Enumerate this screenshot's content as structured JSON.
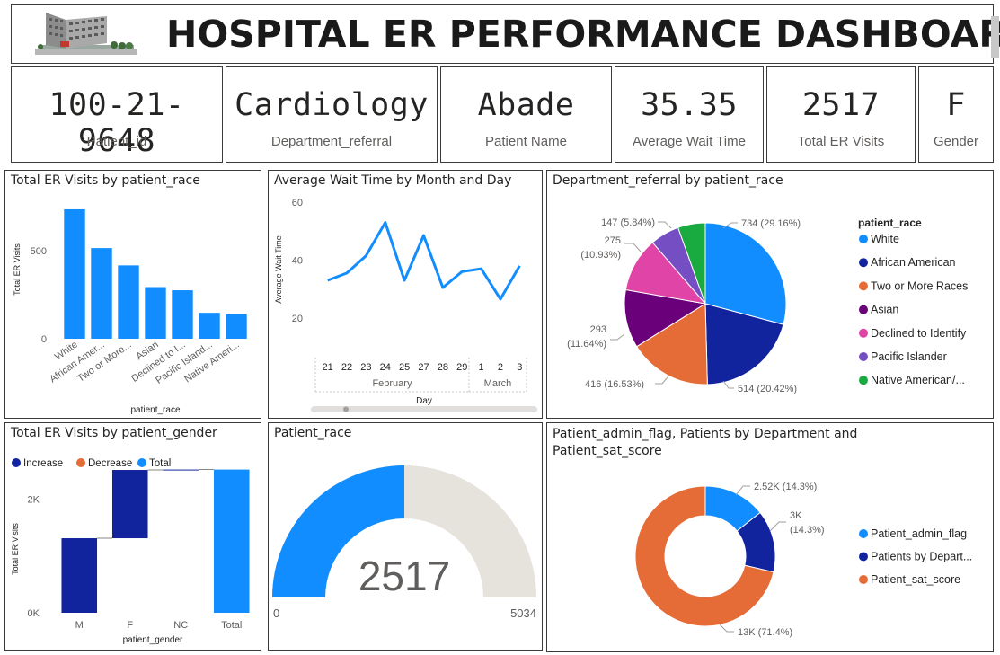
{
  "header": {
    "title": "HOSPITAL ER PERFORMANCE DASHBOARD",
    "logo": "hospital-building-image"
  },
  "cards": [
    {
      "value": "100-21-9648",
      "label": "Patient_id"
    },
    {
      "value": "Cardiology",
      "label": "Department_referral"
    },
    {
      "value": "Abade",
      "label": "Patient Name"
    },
    {
      "value": "35.35",
      "label": "Average Wait Time"
    },
    {
      "value": "2517",
      "label": "Total ER Visits"
    },
    {
      "value": "F",
      "label": "Gender"
    }
  ],
  "colors": {
    "primary": "#118dff",
    "navy": "#12239e",
    "orange": "#e66c37",
    "purple": "#6b007b",
    "pink": "#e044a7",
    "darkpurple": "#744ec2",
    "green": "#1aab40",
    "gaugeTrack": "#e6e2dc"
  },
  "chart_data": [
    {
      "type": "bar",
      "title": "Total ER Visits by patient_race",
      "xlabel": "patient_race",
      "ylabel": "Total ER Visits",
      "categories": [
        "White",
        "African Amer...",
        "Two or More...",
        "Asian",
        "Declined to I...",
        "Pacific Island...",
        "Native Ameri..."
      ],
      "values": [
        734,
        514,
        416,
        293,
        275,
        147,
        138
      ],
      "yticks": [
        "0",
        "500"
      ],
      "ylim": [
        0,
        800
      ]
    },
    {
      "type": "line",
      "title": "Average Wait Time by Month and Day",
      "xlabel": "Day",
      "ylabel": "Average Wait Time",
      "x": [
        "21",
        "22",
        "23",
        "24",
        "25",
        "27",
        "28",
        "29",
        "1",
        "2",
        "3"
      ],
      "groups": [
        {
          "label": "February",
          "count": 8
        },
        {
          "label": "March",
          "count": 3
        }
      ],
      "values": [
        33,
        35.5,
        41.5,
        53,
        33,
        48.5,
        30.5,
        36,
        37,
        26.5,
        38
      ],
      "yticks": [
        "20",
        "40",
        "60"
      ],
      "ylim": [
        15,
        60
      ]
    },
    {
      "type": "pie",
      "title": "Department_referral by patient_race",
      "legend_title": "patient_race",
      "slices": [
        {
          "label": "White",
          "value": 734,
          "text": "734 (29.16%)"
        },
        {
          "label": "African American",
          "value": 514,
          "text": "514 (20.42%)"
        },
        {
          "label": "Two or More Races",
          "value": 416,
          "text": "416 (16.53%)"
        },
        {
          "label": "Asian",
          "value": 293,
          "text": "293 (11.64%)"
        },
        {
          "label": "Declined to Identify",
          "value": 275,
          "text": "275 (10.93%)"
        },
        {
          "label": "Pacific Islander",
          "value": 147,
          "text": "147 (5.84%)"
        },
        {
          "label": "Native American/...",
          "value": 138,
          "text": ""
        }
      ]
    },
    {
      "type": "bar",
      "subtype": "waterfall",
      "title": "Total ER Visits by patient_gender",
      "xlabel": "patient_gender",
      "ylabel": "Total ER Visits",
      "legend": [
        "Increase",
        "Decrease",
        "Total"
      ],
      "categories": [
        "M",
        "F",
        "NC",
        "Total"
      ],
      "values": [
        1310,
        1200,
        7,
        2517
      ],
      "yticks": [
        "0K",
        "2K"
      ],
      "ylim": [
        0,
        2700
      ]
    },
    {
      "type": "gauge",
      "title": "Patient_race",
      "value": 2517,
      "value_text": "2517",
      "min": 0,
      "max": 5034,
      "min_text": "0",
      "max_text": "5034"
    },
    {
      "type": "pie",
      "subtype": "donut",
      "title": "Patient_admin_flag, Patients by Department and Patient_sat_score",
      "slices": [
        {
          "label": "Patient_admin_flag",
          "value": 2517,
          "text": "2.52K (14.3%)"
        },
        {
          "label": "Patients by Depart...",
          "value": 2517,
          "text_line1": "3K",
          "text_line2": "(14.3%)"
        },
        {
          "label": "Patient_sat_score",
          "value": 12542,
          "text": "13K (71.4%)"
        }
      ]
    }
  ]
}
